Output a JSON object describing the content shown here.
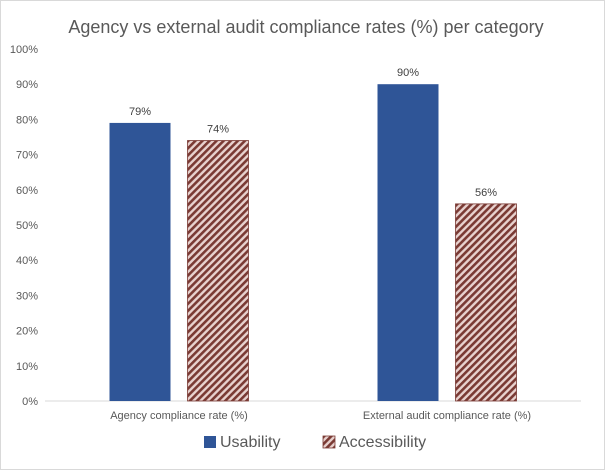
{
  "chart_data": {
    "type": "bar",
    "title": "Agency vs external audit compliance rates (%) per category",
    "categories": [
      "Agency compliance rate (%)",
      "External audit compliance rate (%)"
    ],
    "series": [
      {
        "name": "Usability",
        "values": [
          79,
          90
        ],
        "labels": [
          "79%",
          "90%"
        ],
        "color": "#2f5597",
        "pattern": "solid"
      },
      {
        "name": "Accessibility",
        "values": [
          74,
          56
        ],
        "labels": [
          "74%",
          "56%"
        ],
        "color": "#7a3a34",
        "pattern": "diagonal-stripes"
      }
    ],
    "ylim": [
      0,
      100
    ],
    "yticks": [
      "0%",
      "10%",
      "20%",
      "30%",
      "40%",
      "50%",
      "60%",
      "70%",
      "80%",
      "90%",
      "100%"
    ],
    "grid": false,
    "legend_position": "bottom"
  }
}
